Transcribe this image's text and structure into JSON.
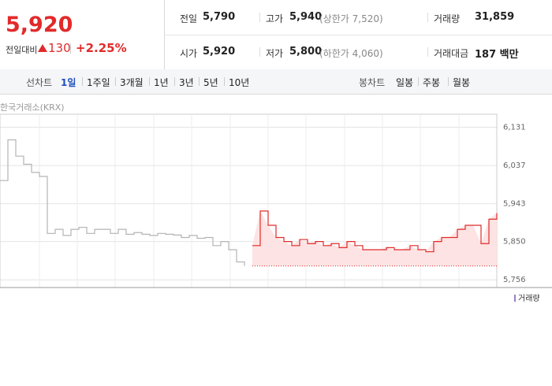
{
  "quote": {
    "price": "5,920",
    "change_label": "전일대비",
    "change": "130",
    "change_pct": "+2.25%"
  },
  "table": {
    "rows": [
      [
        {
          "label": "전일",
          "value": "5,790"
        },
        {
          "label": "고가",
          "value": "5,940",
          "note": "(상한가 7,520)"
        },
        {
          "label": "거래량",
          "value": "31,859"
        }
      ],
      [
        {
          "label": "시가",
          "value": "5,920"
        },
        {
          "label": "저가",
          "value": "5,800",
          "note": "(하한가 4,060)"
        },
        {
          "label": "거래대금",
          "value": "187 백만"
        }
      ]
    ]
  },
  "tabs": {
    "line_label": "선차트",
    "line": [
      "1일",
      "1주일",
      "3개월",
      "1년",
      "3년",
      "5년",
      "10년"
    ],
    "line_selected": 0,
    "candle_label": "봉차트",
    "candle": [
      "일봉",
      "주봉",
      "월봉"
    ]
  },
  "chart_data": {
    "type": "line",
    "source": "한국거래소(KRX)",
    "series": [
      {
        "color": "#b4b4b4",
        "values": [
          6000,
          6100,
          6060,
          6040,
          6020,
          6010,
          5870,
          5880,
          5865,
          5880,
          5885,
          5870,
          5880,
          5880,
          5870,
          5880,
          5868,
          5872,
          5868,
          5865,
          5870,
          5868,
          5866,
          5860,
          5865,
          5858,
          5860,
          5840,
          5850,
          5830,
          5800,
          5790,
          null,
          null,
          null,
          null,
          null,
          null,
          null,
          null,
          null,
          null,
          null,
          null,
          null,
          null,
          null,
          null,
          null,
          null,
          null,
          null,
          null,
          null,
          null,
          null,
          null,
          null,
          null,
          null,
          null,
          null,
          null,
          null
        ]
      },
      {
        "color": "#e12a2a",
        "fill": "#fde3e3",
        "values": [
          null,
          null,
          null,
          null,
          null,
          null,
          null,
          null,
          null,
          null,
          null,
          null,
          null,
          null,
          null,
          null,
          null,
          null,
          null,
          null,
          null,
          null,
          null,
          null,
          null,
          null,
          null,
          null,
          null,
          null,
          null,
          null,
          5840,
          5925,
          5890,
          5860,
          5850,
          5840,
          5855,
          5845,
          5850,
          5840,
          5845,
          5835,
          5850,
          5840,
          5830,
          5830,
          5830,
          5835,
          5830,
          5830,
          5840,
          5830,
          5825,
          5850,
          5860,
          5860,
          5880,
          5890,
          5890,
          5845,
          5905,
          5920
        ]
      }
    ],
    "baseline": 5790,
    "ylim": [
      5737,
      6163
    ],
    "yticks": [
      {
        "value": 6131,
        "label": "6,131"
      },
      {
        "value": 6037,
        "label": "6,037"
      },
      {
        "value": 5943,
        "label": "5,943"
      },
      {
        "value": 5850,
        "label": "5,850"
      },
      {
        "value": 5756,
        "label": "5,756"
      }
    ],
    "grid": true,
    "volume_legend": "거래량"
  }
}
